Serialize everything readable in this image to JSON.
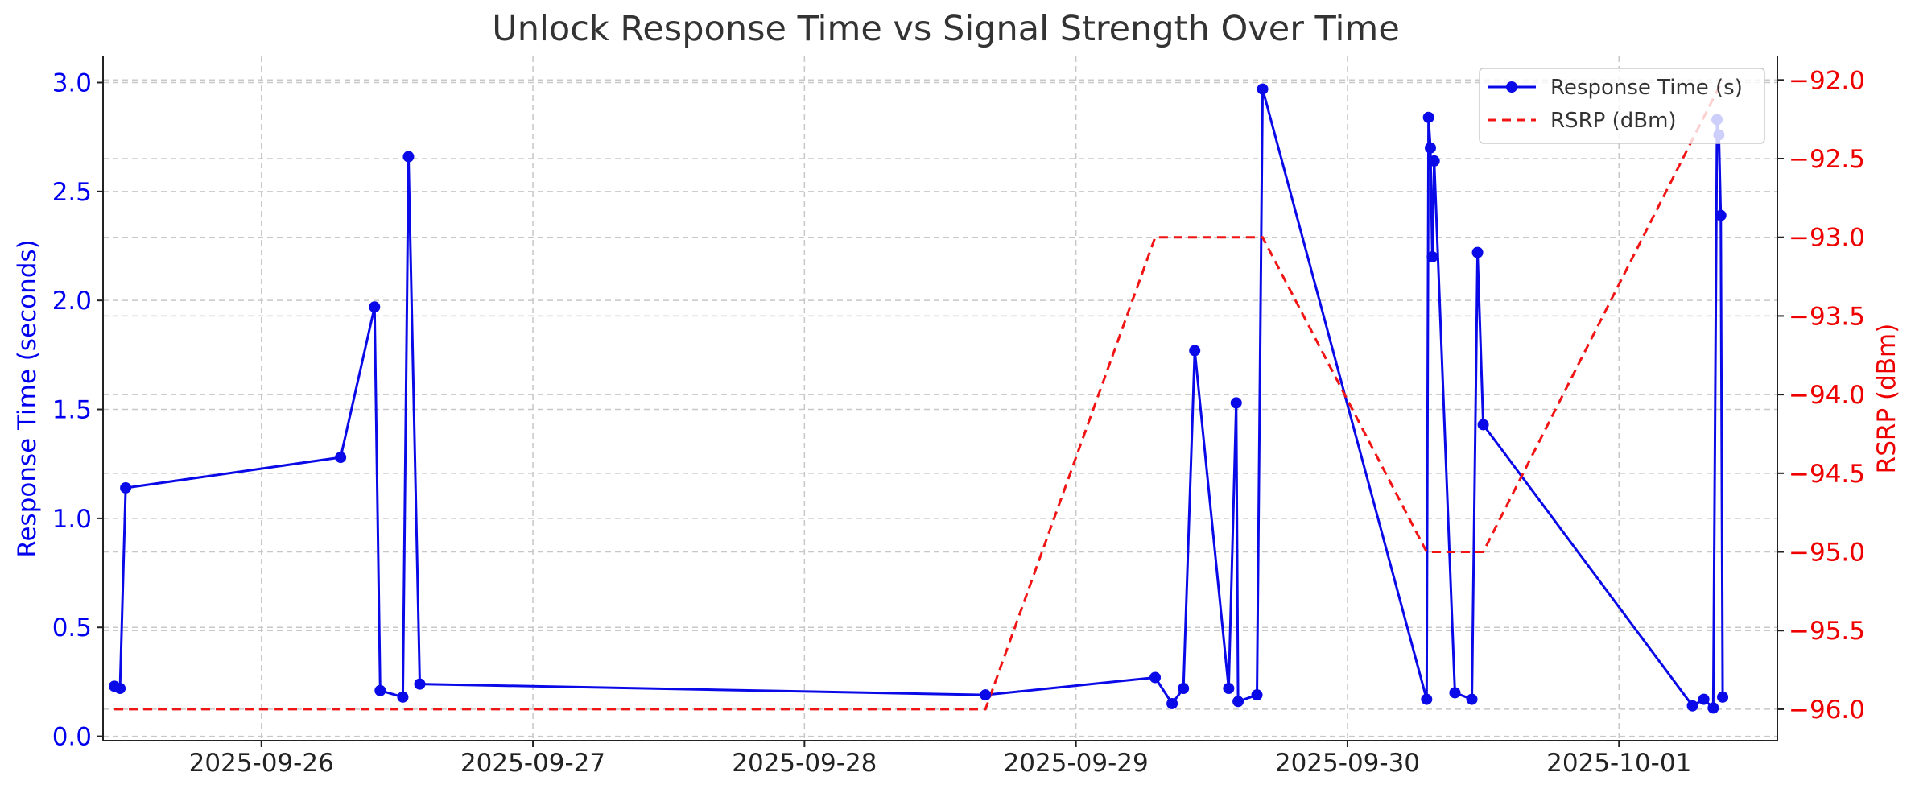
{
  "colors": {
    "response": "#0a0ae8",
    "rsrp": "#f01414",
    "text": "#333333",
    "grid": "#c8c8c8"
  },
  "chart_data": {
    "type": "line",
    "title": "Unlock Response Time vs Signal Strength Over Time",
    "xlabel": "",
    "ylabel": "Response Time (seconds)",
    "ylabel_right": "RSRP (dBm)",
    "x_ticks": [
      "2025-09-26",
      "2025-09-27",
      "2025-09-28",
      "2025-09-29",
      "2025-09-30",
      "2025-10-01"
    ],
    "xlim": [
      "2025-09-25T10:00",
      "2025-10-01T14:00"
    ],
    "ylim": [
      -0.02,
      3.12
    ],
    "y_ticks": [
      "0.0",
      "0.5",
      "1.0",
      "1.5",
      "2.0",
      "2.5",
      "3.0"
    ],
    "ylim_right": [
      -96.2,
      -91.85
    ],
    "y_ticks_right": [
      "−92.0",
      "−92.5",
      "−93.0",
      "−93.5",
      "−94.0",
      "−94.5",
      "−95.0",
      "−95.5",
      "−96.0"
    ],
    "grid": true,
    "legend_position": "top-right",
    "series": [
      {
        "name": "Response Time (s)",
        "axis": "left",
        "style": "solid-marker",
        "points": [
          [
            "2025-09-25T11:00",
            0.23
          ],
          [
            "2025-09-25T11:30",
            0.22
          ],
          [
            "2025-09-25T12:00",
            1.14
          ],
          [
            "2025-09-26T07:00",
            1.28
          ],
          [
            "2025-09-26T10:00",
            1.97
          ],
          [
            "2025-09-26T10:30",
            0.21
          ],
          [
            "2025-09-26T12:30",
            0.18
          ],
          [
            "2025-09-26T13:00",
            2.66
          ],
          [
            "2025-09-26T14:00",
            0.24
          ],
          [
            "2025-09-28T16:00",
            0.19
          ],
          [
            "2025-09-29T07:00",
            0.27
          ],
          [
            "2025-09-29T08:30",
            0.15
          ],
          [
            "2025-09-29T09:30",
            0.22
          ],
          [
            "2025-09-29T10:30",
            1.77
          ],
          [
            "2025-09-29T13:30",
            0.22
          ],
          [
            "2025-09-29T14:10",
            1.53
          ],
          [
            "2025-09-29T14:20",
            0.16
          ],
          [
            "2025-09-29T16:00",
            0.19
          ],
          [
            "2025-09-29T16:30",
            2.97
          ],
          [
            "2025-09-30T07:00",
            0.17
          ],
          [
            "2025-09-30T07:10",
            2.84
          ],
          [
            "2025-09-30T07:20",
            2.7
          ],
          [
            "2025-09-30T07:30",
            2.2
          ],
          [
            "2025-09-30T07:40",
            2.64
          ],
          [
            "2025-09-30T09:30",
            0.2
          ],
          [
            "2025-09-30T11:00",
            0.17
          ],
          [
            "2025-09-30T11:30",
            2.22
          ],
          [
            "2025-09-30T12:00",
            1.43
          ],
          [
            "2025-10-01T06:30",
            0.14
          ],
          [
            "2025-10-01T07:30",
            0.17
          ],
          [
            "2025-10-01T08:20",
            0.13
          ],
          [
            "2025-10-01T08:40",
            2.83
          ],
          [
            "2025-10-01T08:50",
            2.76
          ],
          [
            "2025-10-01T09:00",
            2.39
          ],
          [
            "2025-10-01T09:10",
            0.18
          ]
        ]
      },
      {
        "name": "RSRP (dBm)",
        "axis": "right",
        "style": "dashed",
        "points": [
          [
            "2025-09-25T11:00",
            -96
          ],
          [
            "2025-09-28T16:00",
            -96
          ],
          [
            "2025-09-29T07:00",
            -93
          ],
          [
            "2025-09-29T16:30",
            -93
          ],
          [
            "2025-09-30T07:00",
            -95
          ],
          [
            "2025-09-30T12:00",
            -95
          ],
          [
            "2025-10-01T09:10",
            -92
          ]
        ]
      }
    ]
  }
}
